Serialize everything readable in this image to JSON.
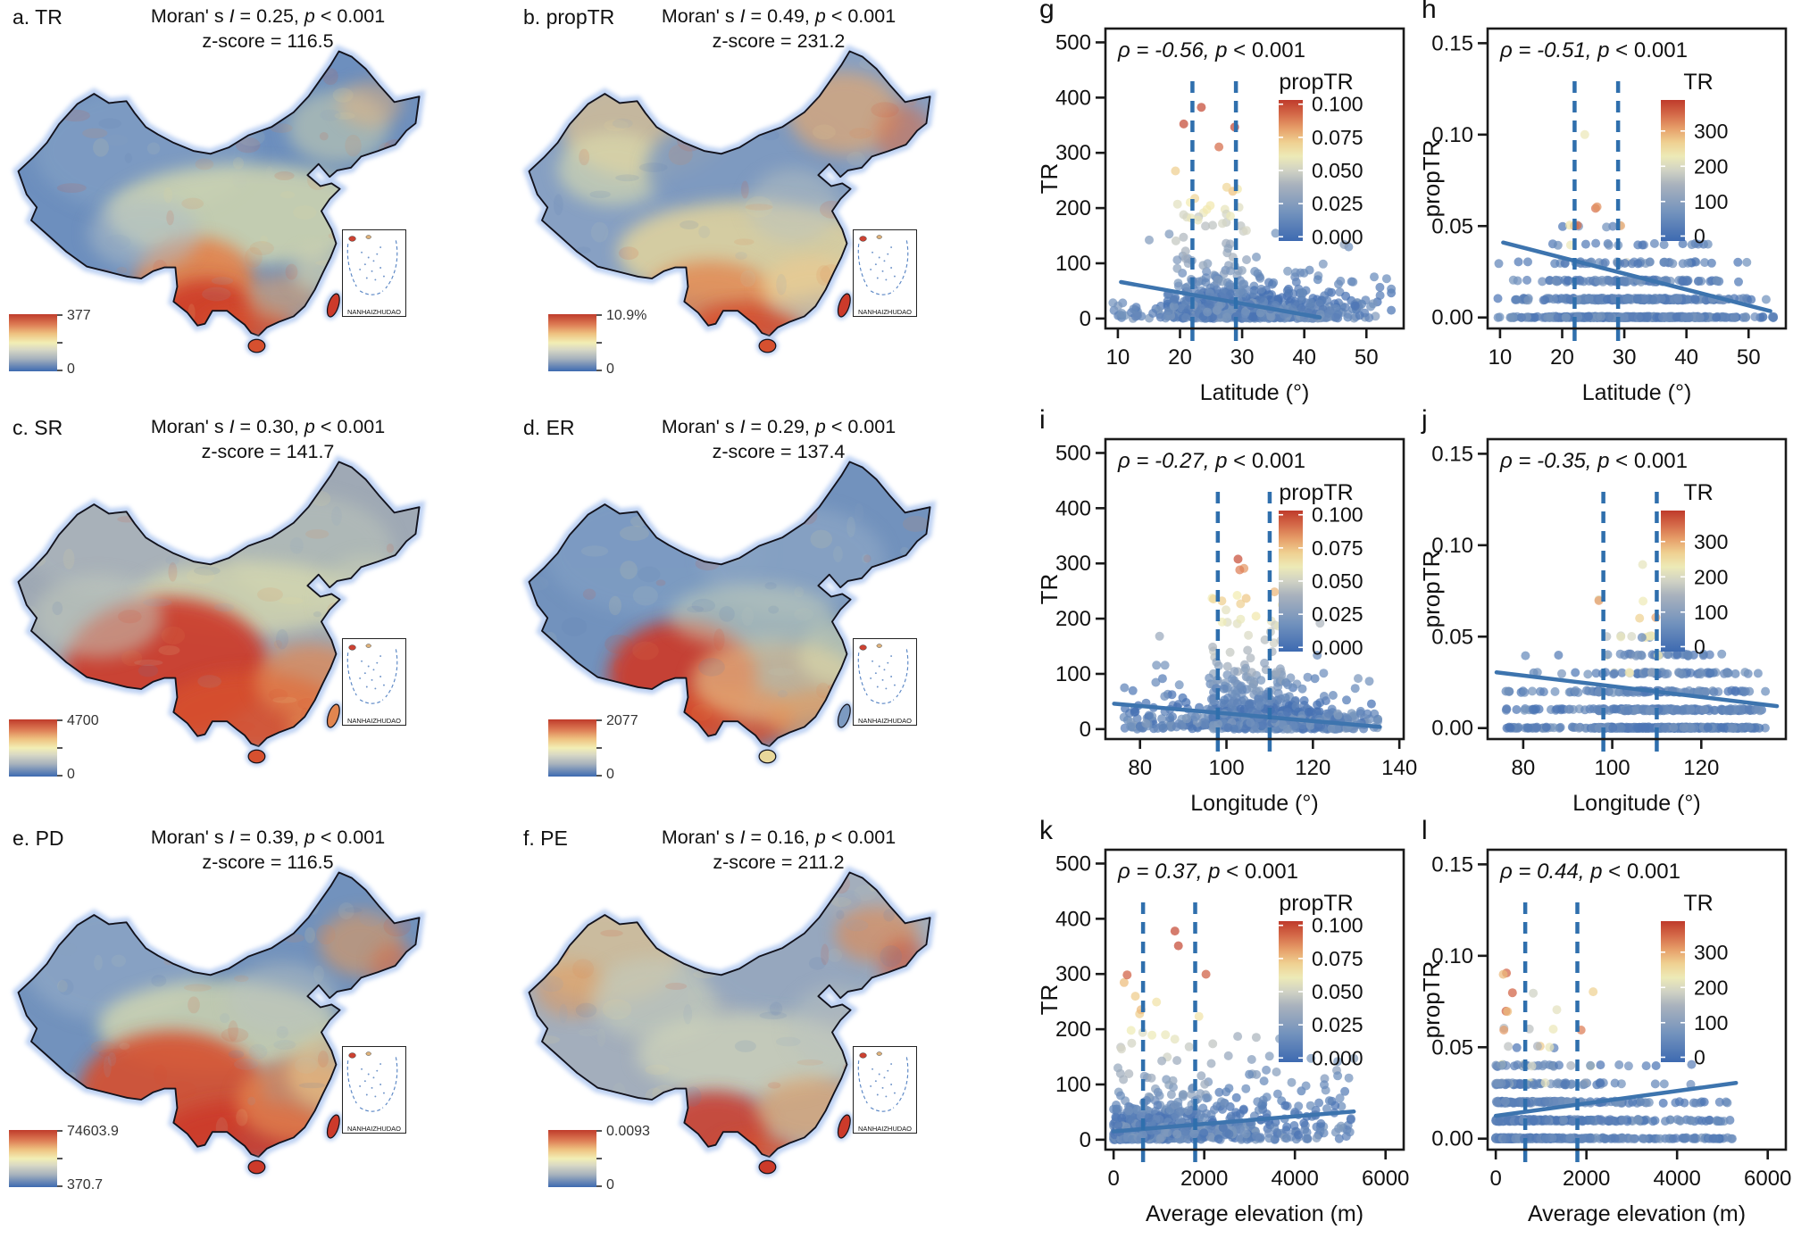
{
  "figure": {
    "background": "#ffffff",
    "colors": {
      "warm_max": "#bf3b2b",
      "mid_yellow": "#f2eeb4",
      "cool_min": "#3d6ab1",
      "trend_line": "#3d74ae",
      "dashed_line": "#2f6fad",
      "coast_halo": "#b7cdf2"
    }
  },
  "chart_data": [
    {
      "type": "choropleth-map",
      "region": "China",
      "panel_title": "a. TR",
      "morans_prefix": "Moran' s ",
      "morans_symbol": "I",
      "morans_value": " = 0.25, ",
      "p_symbol": "p",
      "p_value": " < 0.001",
      "zscore": "z-score =  116.5",
      "colorbar_max": "377",
      "colorbar_min": "0",
      "inset_label": "NANHAIZHUDAO"
    },
    {
      "type": "choropleth-map",
      "region": "China",
      "panel_title": "b. propTR",
      "morans_prefix": "Moran' s ",
      "morans_symbol": "I",
      "morans_value": " = 0.49, ",
      "p_symbol": "p",
      "p_value": " < 0.001",
      "zscore": "z-score =  231.2",
      "colorbar_max": "10.9%",
      "colorbar_min": "0",
      "inset_label": "NANHAIZHUDAO"
    },
    {
      "type": "choropleth-map",
      "region": "China",
      "panel_title": "c. SR",
      "morans_prefix": "Moran' s ",
      "morans_symbol": "I",
      "morans_value": " = 0.30, ",
      "p_symbol": "p",
      "p_value": " < 0.001",
      "zscore": "z-score =  141.7",
      "colorbar_max": "4700",
      "colorbar_min": "0",
      "inset_label": "NANHAIZHUDAO"
    },
    {
      "type": "choropleth-map",
      "region": "China",
      "panel_title": "d. ER",
      "morans_prefix": "Moran' s ",
      "morans_symbol": "I",
      "morans_value": " = 0.29, ",
      "p_symbol": "p",
      "p_value": " < 0.001",
      "zscore": "z-score =  137.4",
      "colorbar_max": "2077",
      "colorbar_min": "0",
      "inset_label": "NANHAIZHUDAO"
    },
    {
      "type": "choropleth-map",
      "region": "China",
      "panel_title": "e. PD",
      "morans_prefix": "Moran' s ",
      "morans_symbol": "I",
      "morans_value": " = 0.39, ",
      "p_symbol": "p",
      "p_value": " < 0.001",
      "zscore": "z-score =  116.5",
      "colorbar_max": "74603.9",
      "colorbar_min": "370.7",
      "inset_label": "NANHAIZHUDAO"
    },
    {
      "type": "choropleth-map",
      "region": "China",
      "panel_title": "f. PE",
      "morans_prefix": "Moran' s ",
      "morans_symbol": "I",
      "morans_value": " = 0.16, ",
      "p_symbol": "p",
      "p_value": " < 0.001",
      "zscore": "z-score =  211.2",
      "colorbar_max": "0.0093",
      "colorbar_min": "0",
      "inset_label": "NANHAIZHUDAO"
    },
    {
      "type": "scatter",
      "panel": "g",
      "annotation_rho": "ρ = -0.56, ",
      "annotation_p": "p",
      "annotation_tail": " < 0.001",
      "xlabel": "Latitude (°)",
      "ylabel": "TR",
      "xlim": [
        8,
        56
      ],
      "ylim": [
        -18,
        525
      ],
      "xticks": [
        10,
        20,
        30,
        40,
        50
      ],
      "xtick_labels": [
        "10",
        "20",
        "30",
        "40",
        "50"
      ],
      "yticks": [
        0,
        100,
        200,
        300,
        400,
        500
      ],
      "ytick_labels": [
        "0",
        "100",
        "200",
        "300",
        "400",
        "500"
      ],
      "legend_title": "propTR",
      "legend_labels": [
        "0.100",
        "0.075",
        "0.050",
        "0.025",
        "0.000"
      ],
      "vlines": [
        22,
        29
      ],
      "trend": [
        [
          10.5,
          66
        ],
        [
          42.5,
          2
        ]
      ],
      "profile": "lat_TR",
      "n_points": 820
    },
    {
      "type": "scatter",
      "panel": "h",
      "annotation_rho": "ρ = -0.51, ",
      "annotation_p": "p",
      "annotation_tail": " < 0.001",
      "xlabel": "Latitude (°)",
      "ylabel": "propTR",
      "xlim": [
        8,
        56
      ],
      "ylim": [
        -0.006,
        0.158
      ],
      "xticks": [
        10,
        20,
        30,
        40,
        50
      ],
      "xtick_labels": [
        "10",
        "20",
        "30",
        "40",
        "50"
      ],
      "yticks": [
        0,
        0.05,
        0.1,
        0.15
      ],
      "ytick_labels": [
        "0.00",
        "0.05",
        "0.10",
        "0.15"
      ],
      "legend_title": "TR",
      "legend_labels": [
        "300",
        "200",
        "100",
        "0"
      ],
      "vlines": [
        22,
        29
      ],
      "trend": [
        [
          10.5,
          0.041
        ],
        [
          53.5,
          0.0035
        ]
      ],
      "profile": "lat_prop",
      "n_points": 880
    },
    {
      "type": "scatter",
      "panel": "i",
      "annotation_rho": "ρ = -0.27, ",
      "annotation_p": "p",
      "annotation_tail": " < 0.001",
      "xlabel": "Longitude (°)",
      "ylabel": "TR",
      "xlim": [
        72,
        141
      ],
      "ylim": [
        -18,
        525
      ],
      "xticks": [
        80,
        100,
        120,
        140
      ],
      "xtick_labels": [
        "80",
        "100",
        "120",
        "140"
      ],
      "yticks": [
        0,
        100,
        200,
        300,
        400,
        500
      ],
      "ytick_labels": [
        "0",
        "100",
        "200",
        "300",
        "400",
        "500"
      ],
      "legend_title": "propTR",
      "legend_labels": [
        "0.100",
        "0.075",
        "0.050",
        "0.025",
        "0.000"
      ],
      "vlines": [
        98,
        110
      ],
      "trend": [
        [
          74,
          46
        ],
        [
          135.5,
          4
        ]
      ],
      "profile": "lon_TR",
      "n_points": 820
    },
    {
      "type": "scatter",
      "panel": "j",
      "annotation_rho": "ρ = -0.35, ",
      "annotation_p": "p",
      "annotation_tail": " < 0.001",
      "xlabel": "Longitude (°)",
      "ylabel": "propTR",
      "xlim": [
        72,
        139
      ],
      "ylim": [
        -0.006,
        0.158
      ],
      "xticks": [
        80,
        100,
        120
      ],
      "xtick_labels": [
        "80",
        "100",
        "120"
      ],
      "yticks": [
        0,
        0.05,
        0.1,
        0.15
      ],
      "ytick_labels": [
        "0.00",
        "0.05",
        "0.10",
        "0.15"
      ],
      "legend_title": "TR",
      "legend_labels": [
        "300",
        "200",
        "100",
        "0"
      ],
      "vlines": [
        98,
        110
      ],
      "trend": [
        [
          74,
          0.0305
        ],
        [
          137,
          0.012
        ]
      ],
      "profile": "lon_prop",
      "n_points": 880
    },
    {
      "type": "scatter",
      "panel": "k",
      "annotation_rho": "ρ = 0.37, ",
      "annotation_p": "p",
      "annotation_tail": " < 0.001",
      "xlabel": "Average elevation (m)",
      "ylabel": "TR",
      "xlim": [
        -180,
        6400
      ],
      "ylim": [
        -18,
        525
      ],
      "xticks": [
        0,
        2000,
        4000,
        6000
      ],
      "xtick_labels": [
        "0",
        "2000",
        "4000",
        "6000"
      ],
      "yticks": [
        0,
        100,
        200,
        300,
        400,
        500
      ],
      "ytick_labels": [
        "0",
        "100",
        "200",
        "300",
        "400",
        "500"
      ],
      "legend_title": "propTR",
      "legend_labels": [
        "0.100",
        "0.075",
        "0.050",
        "0.025",
        "0.000"
      ],
      "vlines": [
        650,
        1800
      ],
      "trend": [
        [
          0,
          15
        ],
        [
          5300,
          51
        ]
      ],
      "profile": "elev_TR",
      "n_points": 820
    },
    {
      "type": "scatter",
      "panel": "l",
      "annotation_rho": "ρ = 0.44, ",
      "annotation_p": "p",
      "annotation_tail": " < 0.001",
      "xlabel": "Average elevation (m)",
      "ylabel": "propTR",
      "xlim": [
        -180,
        6400
      ],
      "ylim": [
        -0.006,
        0.158
      ],
      "xticks": [
        0,
        2000,
        4000,
        6000
      ],
      "xtick_labels": [
        "0",
        "2000",
        "4000",
        "6000"
      ],
      "yticks": [
        0,
        0.05,
        0.1,
        0.15
      ],
      "ytick_labels": [
        "0.00",
        "0.05",
        "0.10",
        "0.15"
      ],
      "legend_title": "TR",
      "legend_labels": [
        "300",
        "200",
        "100",
        "0"
      ],
      "vlines": [
        650,
        1800
      ],
      "trend": [
        [
          0,
          0.0125
        ],
        [
          5300,
          0.0305
        ]
      ],
      "profile": "elev_prop",
      "n_points": 880
    }
  ]
}
